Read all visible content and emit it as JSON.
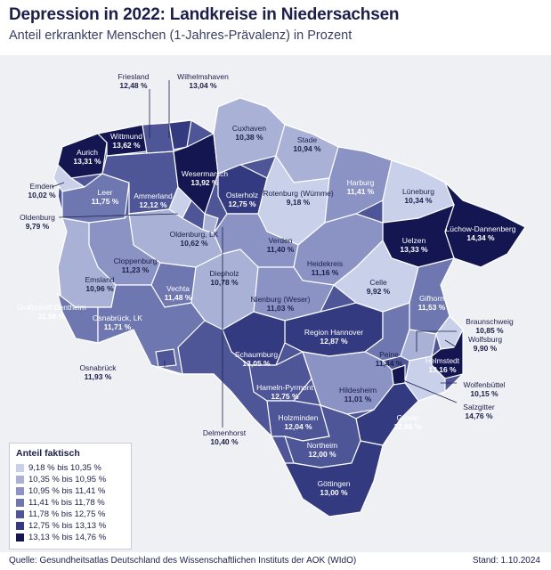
{
  "header": {
    "title": "Depression in 2022: Landkreise in Niedersachsen",
    "subtitle": "Anteil erkrankter Menschen (1-Jahres-Prävalenz) in Prozent"
  },
  "legend": {
    "title": "Anteil faktisch",
    "items": [
      {
        "label": "9,18 % bis 10,35 %",
        "color": "#c9d0ea"
      },
      {
        "label": "10,35 % bis 10,95 %",
        "color": "#a9b2d6"
      },
      {
        "label": "10,95 % bis 11,41 %",
        "color": "#8a93c4"
      },
      {
        "label": "11,41 % bis 11,78 %",
        "color": "#6e77b0"
      },
      {
        "label": "11,78 % bis 12,75 %",
        "color": "#4e5698"
      },
      {
        "label": "12,75 % bis 13,13 %",
        "color": "#343a80"
      },
      {
        "label": "13,13 % bis 14,76 %",
        "color": "#141652"
      }
    ]
  },
  "districts": [
    {
      "name": "Friesland",
      "value": "12,48 %"
    },
    {
      "name": "Wilhelmshaven",
      "value": "13,04 %"
    },
    {
      "name": "Wittmund",
      "value": "13,62 %"
    },
    {
      "name": "Aurich",
      "value": "13,31 %"
    },
    {
      "name": "Emden",
      "value": "10,02 %"
    },
    {
      "name": "Leer",
      "value": "11,75 %"
    },
    {
      "name": "Oldenburg",
      "value": "9,79 %"
    },
    {
      "name": "Ammerland",
      "value": "12,12 %"
    },
    {
      "name": "Wesermarsch",
      "value": "13,92 %"
    },
    {
      "name": "Cuxhaven",
      "value": "10,38 %"
    },
    {
      "name": "Stade",
      "value": "10,94 %"
    },
    {
      "name": "Osterholz",
      "value": "12,75 %"
    },
    {
      "name": "Rotenburg (Wümme)",
      "value": "9,18 %"
    },
    {
      "name": "Harburg",
      "value": "11,41 %"
    },
    {
      "name": "Lüneburg",
      "value": "10,34 %"
    },
    {
      "name": "Lüchow-Dannenberg",
      "value": "14,34 %"
    },
    {
      "name": "Uelzen",
      "value": "13,33 %"
    },
    {
      "name": "Oldenburg, LK",
      "value": "10,62 %"
    },
    {
      "name": "Verden",
      "value": "11,40 %"
    },
    {
      "name": "Heidekreis",
      "value": "11,16 %"
    },
    {
      "name": "Celle",
      "value": "9,92 %"
    },
    {
      "name": "Cloppenburg",
      "value": "11,23 %"
    },
    {
      "name": "Emsland",
      "value": "10,96 %"
    },
    {
      "name": "Diepholz",
      "value": "10,78 %"
    },
    {
      "name": "Vechta",
      "value": "11,48 %"
    },
    {
      "name": "Nienburg (Weser)",
      "value": "11,03 %"
    },
    {
      "name": "Gifhorn",
      "value": "11,53 %"
    },
    {
      "name": "Grafschaft Bentheim",
      "value": "11,56 %"
    },
    {
      "name": "Osnabrück, LK",
      "value": "11,71 %"
    },
    {
      "name": "Region Hannover",
      "value": "12,87 %"
    },
    {
      "name": "Braunschweig",
      "value": "10,85 %"
    },
    {
      "name": "Wolfsburg",
      "value": "9,90 %"
    },
    {
      "name": "Schaumburg",
      "value": "13,05 %"
    },
    {
      "name": "Peine",
      "value": "11,44 %"
    },
    {
      "name": "Helmstedt",
      "value": "13,16 %"
    },
    {
      "name": "Osnabrück",
      "value": "11,93 %"
    },
    {
      "name": "Hameln-Pyrmont",
      "value": "12,75 %"
    },
    {
      "name": "Wolfenbüttel",
      "value": "10,15 %"
    },
    {
      "name": "Salzgitter",
      "value": "14,76 %"
    },
    {
      "name": "Hildesheim",
      "value": "11,01 %"
    },
    {
      "name": "Delmenhorst",
      "value": "10,40 %"
    },
    {
      "name": "Holzminden",
      "value": "12,04 %"
    },
    {
      "name": "Goslar",
      "value": "12,96 %"
    },
    {
      "name": "Northeim",
      "value": "12,00 %"
    },
    {
      "name": "Göttingen",
      "value": "13,00 %"
    }
  ],
  "footer": {
    "source": "Quelle: Gesundheitsatlas Deutschland des Wissenschaftlichen Instituts der AOK (WIdO)",
    "date": "Stand: 1.10.2024"
  }
}
